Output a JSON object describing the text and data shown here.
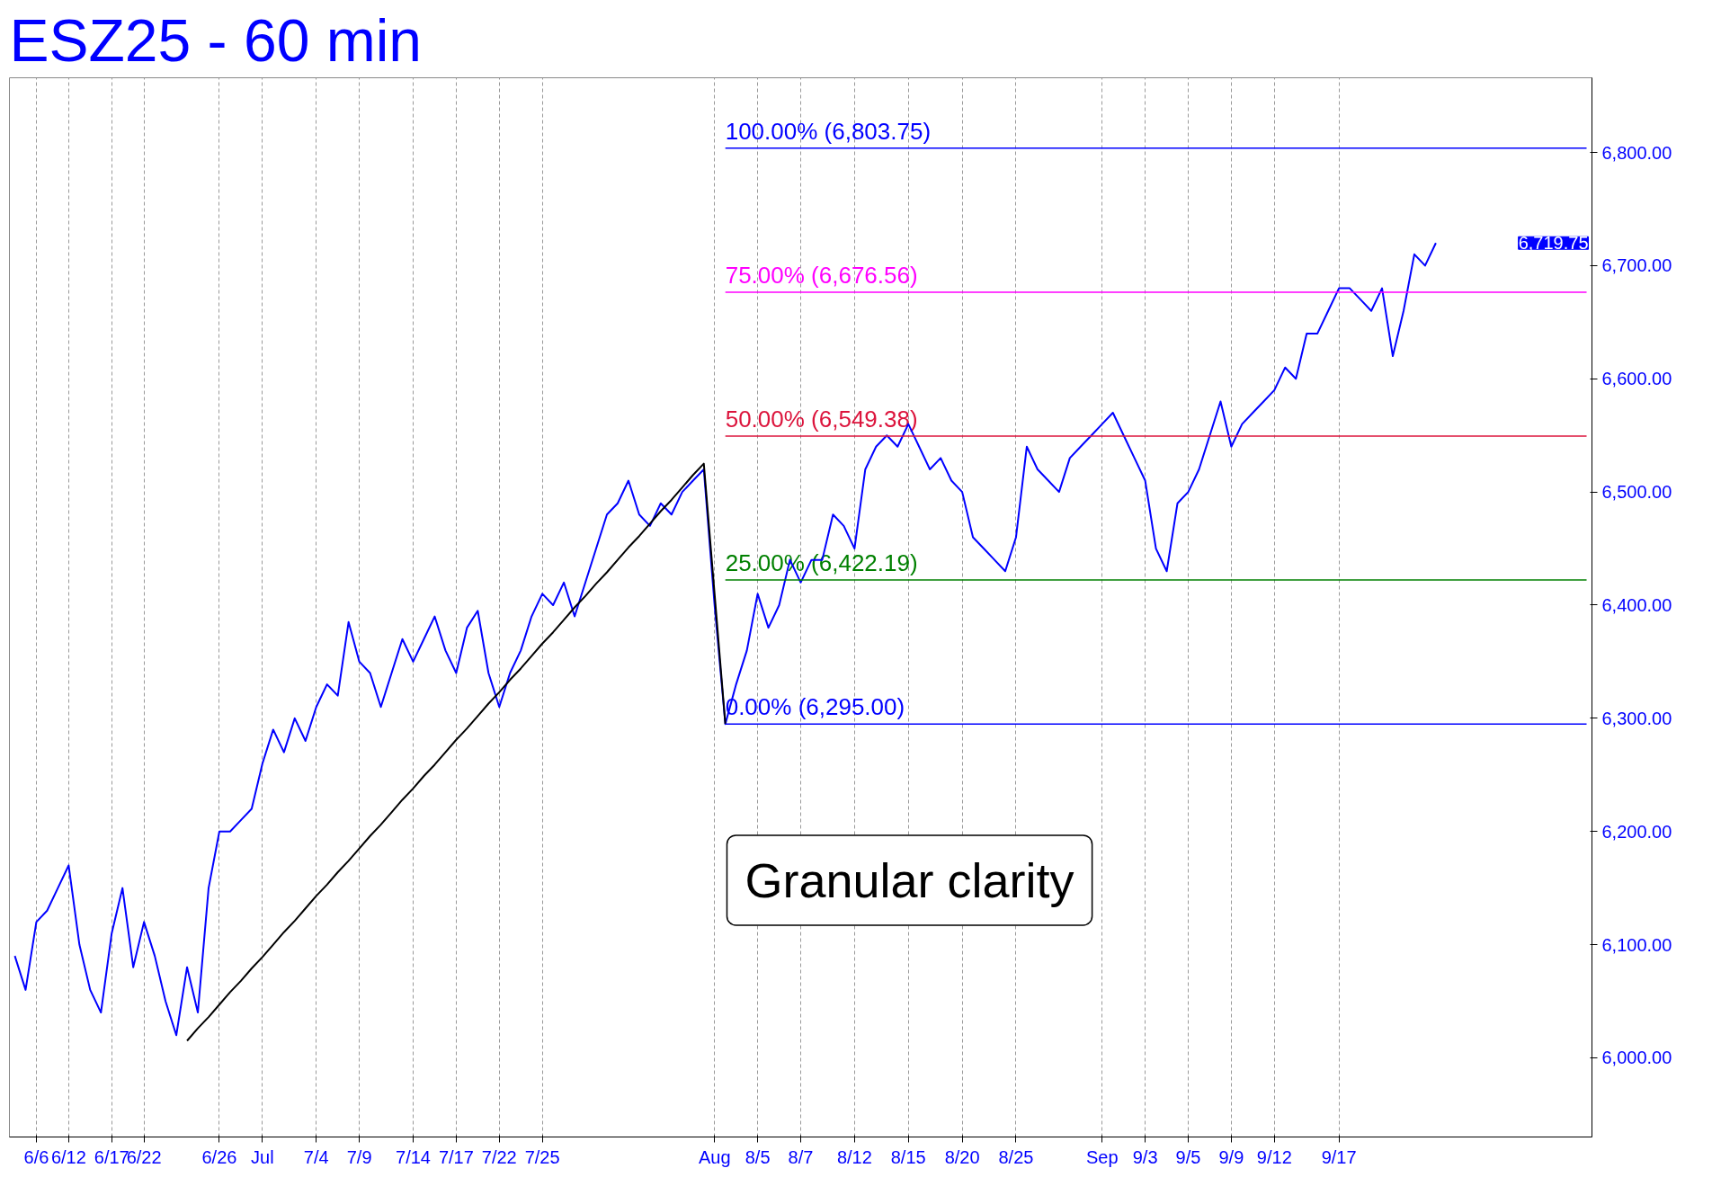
{
  "chart_data": {
    "type": "line",
    "title": "ESZ25 - 60 min",
    "categories": [
      null,
      null,
      "6/6",
      null,
      null,
      "6/12",
      null,
      null,
      null,
      "6/17",
      null,
      null,
      "6/22",
      null,
      null,
      null,
      null,
      null,
      null,
      "6/26",
      null,
      null,
      null,
      "Jul",
      null,
      null,
      null,
      null,
      "7/4",
      null,
      null,
      null,
      "7/9",
      null,
      null,
      null,
      null,
      "7/14",
      null,
      null,
      null,
      "7/17",
      null,
      null,
      null,
      "7/22",
      null,
      null,
      null,
      "7/25",
      null,
      null,
      null,
      null,
      null,
      null,
      null,
      null,
      null,
      null,
      null,
      null,
      null,
      null,
      null,
      "Aug",
      null,
      null,
      null,
      "8/5",
      null,
      null,
      null,
      "8/7",
      null,
      null,
      null,
      null,
      "8/12",
      null,
      null,
      null,
      null,
      "8/15",
      null,
      null,
      null,
      null,
      "8/20",
      null,
      null,
      null,
      null,
      "8/25",
      null,
      null,
      null,
      null,
      null,
      null,
      null,
      "Sep",
      null,
      null,
      null,
      "9/3",
      null,
      null,
      null,
      "9/5",
      null,
      null,
      null,
      "9/9",
      null,
      null,
      null,
      "9/12",
      null,
      null,
      null,
      null,
      null,
      "9/17",
      null,
      null,
      null,
      null,
      null,
      null,
      null,
      null,
      null,
      null,
      null,
      null,
      null,
      null,
      null,
      null,
      null,
      null,
      null,
      null,
      null,
      null,
      null
    ],
    "ylim": [
      5930,
      6866
    ],
    "yticks": [
      {
        "value": 6000,
        "label": "6,000.00"
      },
      {
        "value": 6100,
        "label": "6,100.00"
      },
      {
        "value": 6200,
        "label": "6,200.00"
      },
      {
        "value": 6300,
        "label": "6,300.00"
      },
      {
        "value": 6400,
        "label": "6,400.00"
      },
      {
        "value": 6500,
        "label": "6,500.00"
      },
      {
        "value": 6600,
        "label": "6,600.00"
      },
      {
        "value": 6700,
        "label": "6,700.00"
      },
      {
        "value": 6800,
        "label": "6,800.00"
      }
    ],
    "grid": "x",
    "series": [
      {
        "color": "#0000ff",
        "values": [
          6090,
          6060,
          6120,
          6130,
          6150,
          6170,
          6100,
          6060,
          6040,
          6110,
          6150,
          6080,
          6120,
          6090,
          6050,
          6020,
          6080,
          6040,
          6150,
          6200,
          6200,
          6210,
          6220,
          6260,
          6290,
          6270,
          6300,
          6280,
          6310,
          6330,
          6320,
          6385,
          6350,
          6340,
          6310,
          6340,
          6370,
          6350,
          6370,
          6390,
          6360,
          6340,
          6380,
          6395,
          6340,
          6310,
          6340,
          6360,
          6390,
          6410,
          6400,
          6420,
          6390,
          6420,
          6450,
          6480,
          6490,
          6510,
          6480,
          6470,
          6490,
          6480,
          6500,
          6510,
          6520,
          6400,
          6295,
          6330,
          6360,
          6410,
          6380,
          6400,
          6440,
          6420,
          6440,
          6440,
          6480,
          6470,
          6450,
          6520,
          6540,
          6550,
          6540,
          6560,
          6540,
          6520,
          6530,
          6510,
          6500,
          6460,
          6450,
          6440,
          6430,
          6460,
          6540,
          6520,
          6510,
          6500,
          6530,
          6540,
          6550,
          6560,
          6570,
          6550,
          6530,
          6510,
          6450,
          6430,
          6490,
          6500,
          6520,
          6550,
          6580,
          6540,
          6560,
          6570,
          6580,
          6590,
          6610,
          6600,
          6640,
          6640,
          6660,
          6680,
          6680,
          6670,
          6660,
          6680,
          6620,
          6660,
          6710,
          6700,
          6720,
          null,
          null,
          null,
          null,
          null,
          null,
          null,
          null,
          null,
          null,
          null,
          null,
          null,
          null
        ]
      },
      {
        "color": "#000000",
        "values": [
          null,
          null,
          null,
          null,
          null,
          null,
          null,
          null,
          null,
          null,
          null,
          null,
          null,
          null,
          null,
          null,
          6015,
          6026,
          6036,
          6047,
          6058,
          6068,
          6079,
          6089,
          6100,
          6111,
          6121,
          6132,
          6143,
          6153,
          6164,
          6174,
          6185,
          6196,
          6206,
          6217,
          6228,
          6238,
          6249,
          6259,
          6270,
          6281,
          6291,
          6302,
          6313,
          6323,
          6334,
          6344,
          6355,
          6366,
          6376,
          6387,
          6398,
          6408,
          6419,
          6429,
          6440,
          6451,
          6461,
          6472,
          6483,
          6493,
          6504,
          6515,
          6525,
          6410,
          6295,
          null,
          null,
          null,
          null,
          null,
          null,
          null,
          null,
          null,
          null,
          null,
          null,
          null,
          null,
          null,
          null,
          null,
          null,
          null,
          null,
          null,
          null,
          null,
          null,
          null,
          null,
          null,
          null,
          null,
          null,
          null,
          null,
          null,
          null,
          null,
          null,
          null,
          null,
          null,
          null,
          null,
          null,
          null,
          null,
          null,
          null,
          null,
          null,
          null,
          null,
          null,
          null,
          null,
          null,
          null,
          null,
          null,
          null,
          null,
          null,
          null,
          null,
          null,
          null,
          null,
          null,
          null,
          null,
          null,
          null,
          null,
          null,
          null,
          null,
          null,
          null,
          null,
          null,
          null,
          null
        ]
      },
      {
        "name": "100.00% (6,803.75)",
        "color": "#0000ff",
        "values": [
          null,
          null,
          null,
          null,
          null,
          null,
          null,
          null,
          null,
          null,
          null,
          null,
          null,
          null,
          null,
          null,
          null,
          null,
          null,
          null,
          null,
          null,
          null,
          null,
          null,
          null,
          null,
          null,
          null,
          null,
          null,
          null,
          null,
          null,
          null,
          null,
          null,
          null,
          null,
          null,
          null,
          null,
          null,
          null,
          null,
          null,
          null,
          null,
          null,
          null,
          null,
          null,
          null,
          null,
          null,
          null,
          null,
          null,
          null,
          null,
          null,
          null,
          null,
          null,
          null,
          null,
          6803.75,
          6803.75,
          6803.75,
          6803.75,
          6803.75,
          6803.75,
          6803.75,
          6803.75,
          6803.75,
          6803.75,
          6803.75,
          6803.75,
          6803.75,
          6803.75,
          6803.75,
          6803.75,
          6803.75,
          6803.75,
          6803.75,
          6803.75,
          6803.75,
          6803.75,
          6803.75,
          6803.75,
          6803.75,
          6803.75,
          6803.75,
          6803.75,
          6803.75,
          6803.75,
          6803.75,
          6803.75,
          6803.75,
          6803.75,
          6803.75,
          6803.75,
          6803.75,
          6803.75,
          6803.75,
          6803.75,
          6803.75,
          6803.75,
          6803.75,
          6803.75,
          6803.75,
          6803.75,
          6803.75,
          6803.75,
          6803.75,
          6803.75,
          6803.75,
          6803.75,
          6803.75,
          6803.75,
          6803.75,
          6803.75,
          6803.75,
          6803.75,
          6803.75,
          6803.75,
          6803.75,
          6803.75,
          6803.75,
          6803.75,
          6803.75,
          6803.75,
          6803.75,
          6803.75,
          6803.75,
          6803.75,
          6803.75,
          6803.75,
          6803.75,
          6803.75,
          6803.75,
          6803.75,
          6803.75,
          6803.75,
          6803.75,
          6803.75,
          6803.75
        ]
      },
      {
        "name": "75.00% (6,676.56)",
        "color": "#ff00ff",
        "values": [
          null,
          null,
          null,
          null,
          null,
          null,
          null,
          null,
          null,
          null,
          null,
          null,
          null,
          null,
          null,
          null,
          null,
          null,
          null,
          null,
          null,
          null,
          null,
          null,
          null,
          null,
          null,
          null,
          null,
          null,
          null,
          null,
          null,
          null,
          null,
          null,
          null,
          null,
          null,
          null,
          null,
          null,
          null,
          null,
          null,
          null,
          null,
          null,
          null,
          null,
          null,
          null,
          null,
          null,
          null,
          null,
          null,
          null,
          null,
          null,
          null,
          null,
          null,
          null,
          null,
          null,
          6676.56,
          6676.56,
          6676.56,
          6676.56,
          6676.56,
          6676.56,
          6676.56,
          6676.56,
          6676.56,
          6676.56,
          6676.56,
          6676.56,
          6676.56,
          6676.56,
          6676.56,
          6676.56,
          6676.56,
          6676.56,
          6676.56,
          6676.56,
          6676.56,
          6676.56,
          6676.56,
          6676.56,
          6676.56,
          6676.56,
          6676.56,
          6676.56,
          6676.56,
          6676.56,
          6676.56,
          6676.56,
          6676.56,
          6676.56,
          6676.56,
          6676.56,
          6676.56,
          6676.56,
          6676.56,
          6676.56,
          6676.56,
          6676.56,
          6676.56,
          6676.56,
          6676.56,
          6676.56,
          6676.56,
          6676.56,
          6676.56,
          6676.56,
          6676.56,
          6676.56,
          6676.56,
          6676.56,
          6676.56,
          6676.56,
          6676.56,
          6676.56,
          6676.56,
          6676.56,
          6676.56,
          6676.56,
          6676.56,
          6676.56,
          6676.56,
          6676.56,
          6676.56,
          6676.56,
          6676.56,
          6676.56,
          6676.56,
          6676.56,
          6676.56,
          6676.56,
          6676.56,
          6676.56,
          6676.56,
          6676.56,
          6676.56,
          6676.56,
          6676.56
        ]
      },
      {
        "name": "50.00% (6,549.38)",
        "color": "#dc143c",
        "values": [
          null,
          null,
          null,
          null,
          null,
          null,
          null,
          null,
          null,
          null,
          null,
          null,
          null,
          null,
          null,
          null,
          null,
          null,
          null,
          null,
          null,
          null,
          null,
          null,
          null,
          null,
          null,
          null,
          null,
          null,
          null,
          null,
          null,
          null,
          null,
          null,
          null,
          null,
          null,
          null,
          null,
          null,
          null,
          null,
          null,
          null,
          null,
          null,
          null,
          null,
          null,
          null,
          null,
          null,
          null,
          null,
          null,
          null,
          null,
          null,
          null,
          null,
          null,
          null,
          null,
          null,
          6549.38,
          6549.38,
          6549.38,
          6549.38,
          6549.38,
          6549.38,
          6549.38,
          6549.38,
          6549.38,
          6549.38,
          6549.38,
          6549.38,
          6549.38,
          6549.38,
          6549.38,
          6549.38,
          6549.38,
          6549.38,
          6549.38,
          6549.38,
          6549.38,
          6549.38,
          6549.38,
          6549.38,
          6549.38,
          6549.38,
          6549.38,
          6549.38,
          6549.38,
          6549.38,
          6549.38,
          6549.38,
          6549.38,
          6549.38,
          6549.38,
          6549.38,
          6549.38,
          6549.38,
          6549.38,
          6549.38,
          6549.38,
          6549.38,
          6549.38,
          6549.38,
          6549.38,
          6549.38,
          6549.38,
          6549.38,
          6549.38,
          6549.38,
          6549.38,
          6549.38,
          6549.38,
          6549.38,
          6549.38,
          6549.38,
          6549.38,
          6549.38,
          6549.38,
          6549.38,
          6549.38,
          6549.38,
          6549.38,
          6549.38,
          6549.38,
          6549.38,
          6549.38,
          6549.38,
          6549.38,
          6549.38,
          6549.38,
          6549.38,
          6549.38,
          6549.38,
          6549.38,
          6549.38,
          6549.38,
          6549.38,
          6549.38,
          6549.38,
          6549.38
        ]
      },
      {
        "name": "25.00% (6,422.19)",
        "color": "#008000",
        "values": [
          null,
          null,
          null,
          null,
          null,
          null,
          null,
          null,
          null,
          null,
          null,
          null,
          null,
          null,
          null,
          null,
          null,
          null,
          null,
          null,
          null,
          null,
          null,
          null,
          null,
          null,
          null,
          null,
          null,
          null,
          null,
          null,
          null,
          null,
          null,
          null,
          null,
          null,
          null,
          null,
          null,
          null,
          null,
          null,
          null,
          null,
          null,
          null,
          null,
          null,
          null,
          null,
          null,
          null,
          null,
          null,
          null,
          null,
          null,
          null,
          null,
          null,
          null,
          null,
          null,
          null,
          6422.19,
          6422.19,
          6422.19,
          6422.19,
          6422.19,
          6422.19,
          6422.19,
          6422.19,
          6422.19,
          6422.19,
          6422.19,
          6422.19,
          6422.19,
          6422.19,
          6422.19,
          6422.19,
          6422.19,
          6422.19,
          6422.19,
          6422.19,
          6422.19,
          6422.19,
          6422.19,
          6422.19,
          6422.19,
          6422.19,
          6422.19,
          6422.19,
          6422.19,
          6422.19,
          6422.19,
          6422.19,
          6422.19,
          6422.19,
          6422.19,
          6422.19,
          6422.19,
          6422.19,
          6422.19,
          6422.19,
          6422.19,
          6422.19,
          6422.19,
          6422.19,
          6422.19,
          6422.19,
          6422.19,
          6422.19,
          6422.19,
          6422.19,
          6422.19,
          6422.19,
          6422.19,
          6422.19,
          6422.19,
          6422.19,
          6422.19,
          6422.19,
          6422.19,
          6422.19,
          6422.19,
          6422.19,
          6422.19,
          6422.19,
          6422.19,
          6422.19,
          6422.19,
          6422.19,
          6422.19,
          6422.19,
          6422.19,
          6422.19,
          6422.19,
          6422.19,
          6422.19,
          6422.19,
          6422.19,
          6422.19,
          6422.19,
          6422.19,
          6422.19
        ]
      },
      {
        "name": "0.00% (6,295.00)",
        "color": "#0000ff",
        "values": [
          null,
          null,
          null,
          null,
          null,
          null,
          null,
          null,
          null,
          null,
          null,
          null,
          null,
          null,
          null,
          null,
          null,
          null,
          null,
          null,
          null,
          null,
          null,
          null,
          null,
          null,
          null,
          null,
          null,
          null,
          null,
          null,
          null,
          null,
          null,
          null,
          null,
          null,
          null,
          null,
          null,
          null,
          null,
          null,
          null,
          null,
          null,
          null,
          null,
          null,
          null,
          null,
          null,
          null,
          null,
          null,
          null,
          null,
          null,
          null,
          null,
          null,
          null,
          null,
          null,
          null,
          6295.0,
          6295.0,
          6295.0,
          6295.0,
          6295.0,
          6295.0,
          6295.0,
          6295.0,
          6295.0,
          6295.0,
          6295.0,
          6295.0,
          6295.0,
          6295.0,
          6295.0,
          6295.0,
          6295.0,
          6295.0,
          6295.0,
          6295.0,
          6295.0,
          6295.0,
          6295.0,
          6295.0,
          6295.0,
          6295.0,
          6295.0,
          6295.0,
          6295.0,
          6295.0,
          6295.0,
          6295.0,
          6295.0,
          6295.0,
          6295.0,
          6295.0,
          6295.0,
          6295.0,
          6295.0,
          6295.0,
          6295.0,
          6295.0,
          6295.0,
          6295.0,
          6295.0,
          6295.0,
          6295.0,
          6295.0,
          6295.0,
          6295.0,
          6295.0,
          6295.0,
          6295.0,
          6295.0,
          6295.0,
          6295.0,
          6295.0,
          6295.0,
          6295.0,
          6295.0,
          6295.0,
          6295.0,
          6295.0,
          6295.0,
          6295.0,
          6295.0,
          6295.0,
          6295.0,
          6295.0,
          6295.0,
          6295.0,
          6295.0,
          6295.0,
          6295.0,
          6295.0,
          6295.0,
          6295.0,
          6295.0,
          6295.0,
          6295.0,
          6295.0
        ]
      }
    ],
    "annotations": [
      "6,719.75",
      "Granular clarity"
    ]
  }
}
